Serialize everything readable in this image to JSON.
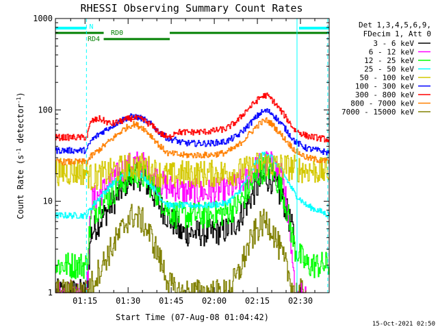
{
  "chart_data": {
    "type": "line",
    "title": "RHESSI Observing Summary Count Rates",
    "xlabel": "Start Time (07-Aug-08 01:04:42)",
    "ylabel_main": "Count Rate (s",
    "ylabel_sup1": "-1",
    "ylabel_mid": " detector",
    "ylabel_sup2": "-1",
    "ylabel_end": ")",
    "xlim": [
      64.7,
      160
    ],
    "ylim": [
      1,
      1000
    ],
    "yscale": "log",
    "grid": false,
    "x_ticks": [
      {
        "value": 75,
        "label": "01:15"
      },
      {
        "value": 90,
        "label": "01:30"
      },
      {
        "value": 105,
        "label": "01:45"
      },
      {
        "value": 120,
        "label": "02:00"
      },
      {
        "value": 135,
        "label": "02:15"
      },
      {
        "value": 150,
        "label": "02:30"
      }
    ],
    "y_ticks": [
      {
        "value": 1,
        "label": "1"
      },
      {
        "value": 10,
        "label": "10"
      },
      {
        "value": 100,
        "label": "100"
      },
      {
        "value": 1000,
        "label": "1000"
      }
    ],
    "legend_header": [
      "Det 1,3,4,5,6,9,",
      "FDecim 1, Att 0"
    ],
    "legend_position": "right",
    "series": [
      {
        "name": "3 - 6 keV",
        "color": "#000000",
        "x": [
          64.7,
          75.5,
          77,
          80,
          84,
          88,
          90,
          92,
          95,
          98,
          101,
          104,
          106.5,
          108,
          112,
          118,
          124,
          128,
          131,
          134,
          136,
          138,
          140,
          144,
          148
        ],
        "values": [
          1,
          1,
          4.5,
          6,
          9,
          14,
          17,
          19,
          18,
          13,
          9,
          6.5,
          5.5,
          4.5,
          4.5,
          4.5,
          4.8,
          6,
          9,
          13,
          16,
          18,
          17,
          10,
          4
        ]
      },
      {
        "name": "6 - 12 keV",
        "color": "#ff00ff",
        "x": [
          64.7,
          75.5,
          77,
          80,
          84,
          88,
          90,
          92,
          95,
          98,
          101,
          104,
          106.5,
          108,
          112,
          118,
          124,
          128,
          131,
          134,
          136,
          138,
          140,
          144,
          148,
          152
        ],
        "values": [
          1,
          1,
          10,
          12,
          16,
          22,
          24,
          26,
          25,
          21,
          16,
          14,
          14,
          13,
          12.5,
          12.5,
          13,
          15,
          18,
          22,
          25,
          26,
          25,
          18,
          1,
          1
        ]
      },
      {
        "name": "12 - 25 keV",
        "color": "#00ff00",
        "x": [
          64.7,
          75.5,
          77,
          80,
          84,
          88,
          90,
          92,
          95,
          98,
          101,
          104,
          106.5,
          108,
          112,
          118,
          124,
          128,
          131,
          134,
          136,
          138,
          140,
          144,
          148,
          152,
          160
        ],
        "values": [
          2,
          2,
          7,
          9,
          12,
          16,
          18,
          20,
          19,
          15,
          11,
          8,
          7,
          7,
          7,
          7,
          7.5,
          9,
          12,
          17,
          21,
          24,
          22,
          12,
          3,
          2,
          2
        ]
      },
      {
        "name": "25 - 50 keV",
        "color": "#00ffff",
        "x": [
          64.7,
          75.5,
          77,
          80,
          84,
          88,
          90,
          92,
          95,
          98,
          101,
          104,
          106.5,
          108,
          112,
          118,
          124,
          128,
          131,
          134,
          136,
          138,
          140,
          144,
          148,
          152,
          160
        ],
        "values": [
          7,
          7,
          8.5,
          11,
          15,
          19,
          20,
          21,
          19,
          15,
          11,
          9,
          9,
          9,
          9,
          9,
          9.5,
          12,
          17,
          25,
          31,
          34,
          30,
          20,
          12,
          9,
          7
        ]
      },
      {
        "name": "50 - 100 keV",
        "color": "#d4c800",
        "x": [
          64.7,
          75.5,
          77,
          80,
          84,
          88,
          90,
          92,
          95,
          98,
          101,
          104,
          106.5,
          108,
          112,
          118,
          124,
          128,
          131,
          134,
          136,
          138,
          140,
          144,
          148,
          152,
          160
        ],
        "values": [
          21,
          21,
          18,
          19,
          21,
          23,
          24,
          24.5,
          24,
          22,
          20,
          19,
          19,
          20,
          20,
          20,
          20.5,
          21,
          22,
          24,
          26,
          26,
          25,
          24,
          23,
          22,
          21
        ]
      },
      {
        "name": "100 - 300 keV",
        "color": "#0000ff",
        "x": [
          64.7,
          75.5,
          77,
          80,
          84,
          88,
          90,
          92,
          95,
          98,
          101,
          104,
          106.5,
          108,
          112,
          118,
          124,
          128,
          131,
          134,
          136,
          138,
          140,
          144,
          148,
          152,
          160
        ],
        "values": [
          36,
          36,
          46,
          55,
          66,
          78,
          83,
          85,
          80,
          69,
          56,
          48,
          47,
          44,
          43,
          43,
          45,
          52,
          64,
          80,
          93,
          98,
          92,
          66,
          45,
          38,
          34
        ]
      },
      {
        "name": "300 - 800 keV",
        "color": "#ff0000",
        "x": [
          64.7,
          75.5,
          77,
          80,
          84,
          88,
          90,
          92,
          95,
          98,
          101,
          104,
          106.5,
          108,
          112,
          118,
          124,
          128,
          131,
          134,
          136,
          138,
          140,
          144,
          148,
          152,
          160
        ],
        "values": [
          50,
          50,
          75,
          80,
          70,
          76,
          80,
          82,
          78,
          68,
          56,
          49,
          58,
          57,
          57,
          58,
          62,
          76,
          98,
          120,
          138,
          145,
          130,
          90,
          60,
          52,
          47
        ]
      },
      {
        "name": "800 - 7000 keV",
        "color": "#ff8000",
        "x": [
          64.7,
          75.5,
          77,
          80,
          84,
          88,
          90,
          92,
          95,
          98,
          101,
          104,
          106.5,
          108,
          112,
          118,
          124,
          128,
          131,
          134,
          136,
          138,
          140,
          144,
          148,
          152,
          160
        ],
        "values": [
          27,
          27,
          31,
          37,
          47,
          60,
          66,
          70,
          64,
          52,
          40,
          33,
          33,
          32,
          32,
          32,
          34,
          40,
          50,
          63,
          72,
          77,
          70,
          50,
          36,
          30,
          27
        ]
      },
      {
        "name": "7000 - 15000 keV",
        "color": "#808000",
        "x": [
          64.7,
          75.5,
          77,
          80,
          84,
          88,
          90,
          92,
          95,
          98,
          101,
          104,
          106.5,
          108,
          112,
          118,
          124,
          128,
          131,
          134,
          136,
          138,
          140,
          144,
          148,
          152
        ],
        "values": [
          1,
          1,
          1.2,
          1.8,
          3,
          5,
          6.5,
          7,
          6,
          4,
          2.3,
          1.3,
          1,
          1,
          1,
          1,
          1,
          1.5,
          2.8,
          4.5,
          5.5,
          6,
          5,
          2.3,
          1,
          1
        ]
      }
    ],
    "annotations": {
      "n_flag": "N",
      "rd0_flag": "RD0",
      "rd4_flag": "RD4",
      "saa_flag_color": "#00ffff",
      "rd_flag_color": "#008000",
      "intervals": {
        "n_bars": [
          [
            64.7,
            75.5
          ],
          [
            149.5,
            160
          ]
        ],
        "rd0_bars": [
          [
            64.7,
            81.5
          ],
          [
            104.5,
            160
          ]
        ],
        "rd4_bars": [
          [
            81.5,
            104.5
          ]
        ],
        "solid_cyan_lines": [
          64.7,
          148.8
        ],
        "dashed_cyan_lines": [
          75.5,
          159.5
        ]
      }
    }
  },
  "timestamp": "15-Oct-2021 02:50"
}
